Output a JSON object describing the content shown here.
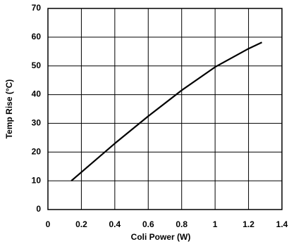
{
  "chart_data": {
    "type": "line",
    "x_label": "Coli Power (W)",
    "y_label": "Temp Rise (°C)",
    "x": [
      0.14,
      0.4,
      0.6,
      0.8,
      1.0,
      1.2,
      1.28
    ],
    "series": [
      {
        "color": "#000000",
        "values": [
          10,
          23,
          32.5,
          41.5,
          49.6,
          56,
          58.2
        ]
      }
    ],
    "xlim": [
      0,
      1.4
    ],
    "xticks": [
      0,
      0.2,
      0.4,
      0.6,
      0.8,
      1,
      1.2,
      1.4
    ],
    "ylim": [
      0,
      70
    ],
    "yticks": [
      0,
      10,
      20,
      30,
      40,
      50,
      60,
      70
    ],
    "grid": true
  }
}
